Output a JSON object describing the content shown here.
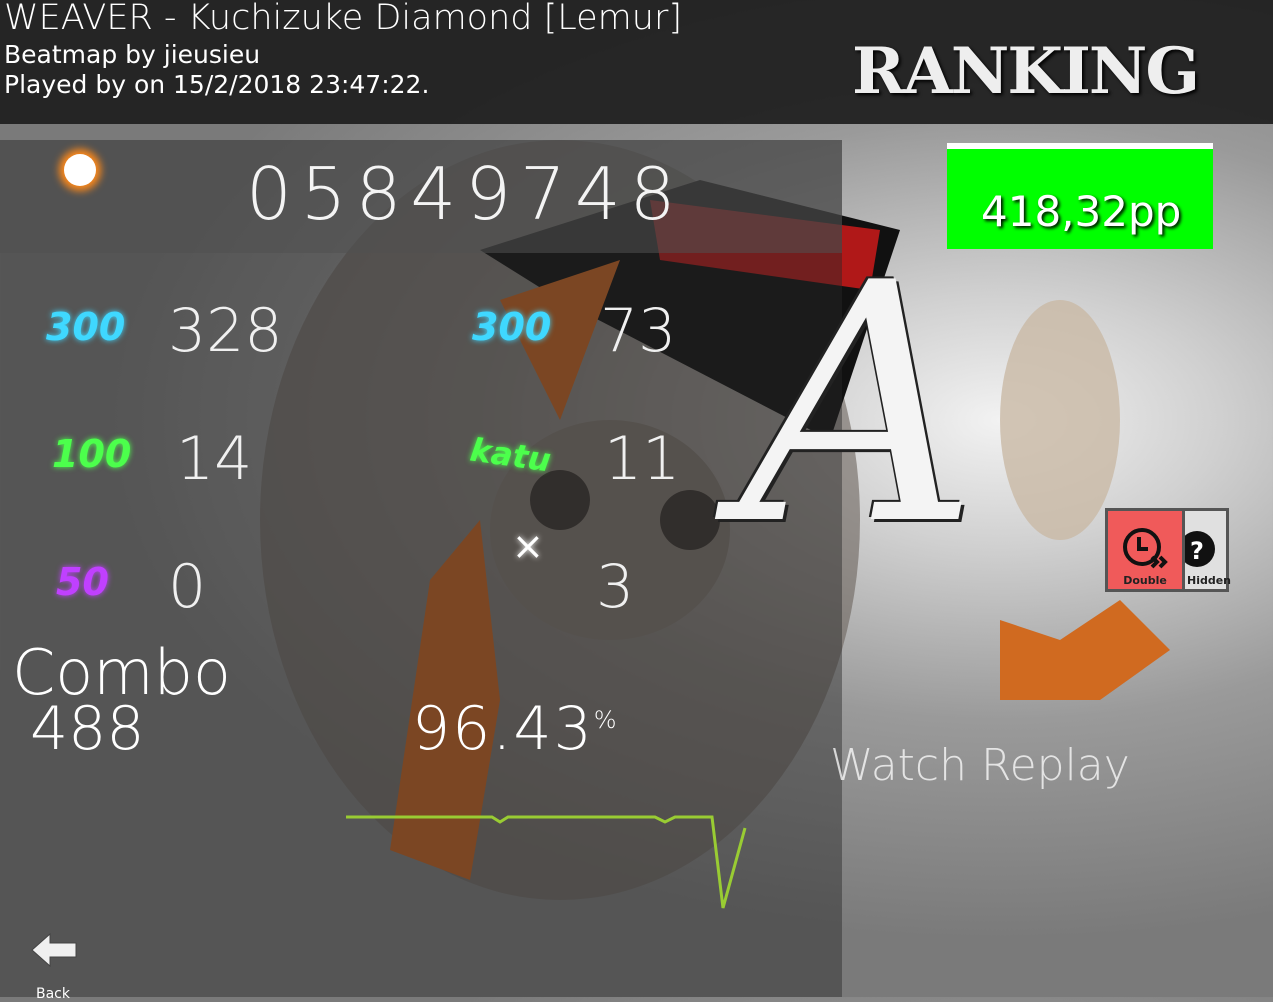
{
  "header": {
    "title": "WEAVER - Kuchizuke Diamond [Lemur]",
    "beatmap_by": "Beatmap by jieusieu",
    "played_by": "Played by  on 15/2/2018 23:47:22."
  },
  "ranking_label": "RANKING",
  "score": "05849748",
  "pp": "418,32pp",
  "judgements": [
    {
      "label": "300",
      "count": "328",
      "color": "#3fd8ff"
    },
    {
      "label": "100",
      "count": "14",
      "color": "#4cff4c"
    },
    {
      "label": "50",
      "count": "0",
      "color": "#c040ff"
    },
    {
      "label": "300",
      "count": "73",
      "color": "#3fd8ff"
    },
    {
      "label": "katu",
      "count": "11",
      "color": "#4cff4c"
    },
    {
      "label": "×",
      "count": "3",
      "color": "#ffffff"
    }
  ],
  "combo": {
    "label": "Combo",
    "value": "488"
  },
  "accuracy": {
    "value": "96.43",
    "unit": "%"
  },
  "grade": "A",
  "mods": [
    {
      "name": "Double",
      "icon": "double-time-icon",
      "color": "#f05a5a"
    },
    {
      "name": "Hidden",
      "icon": "hidden-icon",
      "color": "#e0e0e0"
    }
  ],
  "watch_replay": "Watch Replay",
  "back": {
    "label": "Back",
    "icon": "arrow-left-icon"
  },
  "colors": {
    "pp_bg": "#00ff00",
    "graph": "#99cc33"
  }
}
